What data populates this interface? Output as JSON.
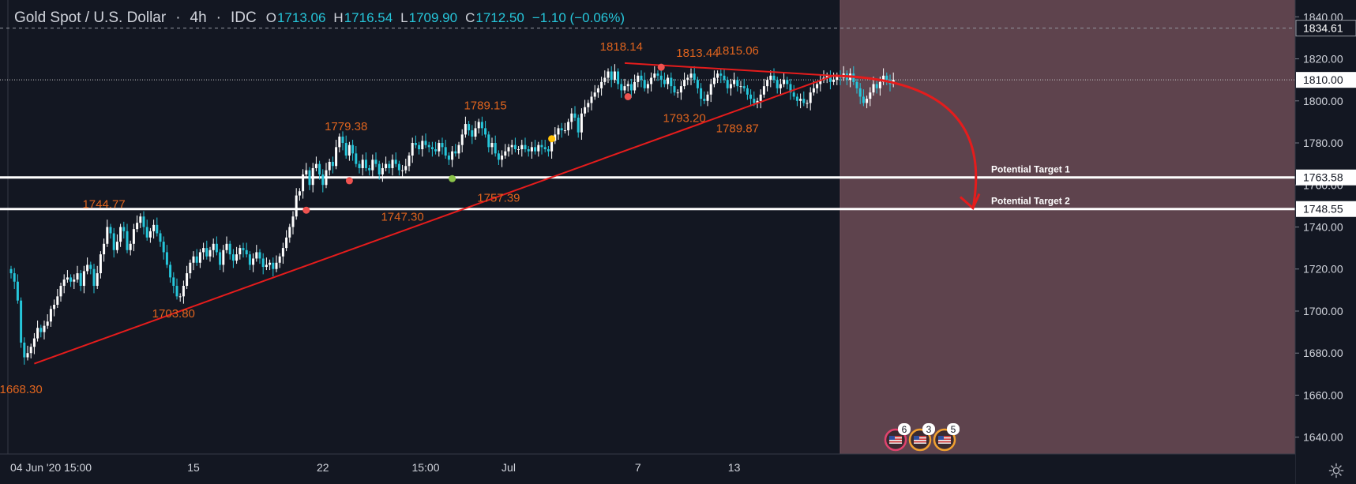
{
  "header": {
    "symbol": "Gold Spot / U.S. Dollar",
    "separator": "·",
    "interval": "4h",
    "source": "IDC",
    "open_label": "O",
    "open": "1713.06",
    "high_label": "H",
    "high": "1716.54",
    "low_label": "L",
    "low": "1709.90",
    "close_label": "C",
    "close": "1712.50",
    "change": "−1.10 (−0.06%)"
  },
  "colors": {
    "background": "#131722",
    "zone": "#5e434d",
    "trendline": "#e51c1c",
    "label": "#e0641e",
    "candle_up": "#ffffff",
    "candle_down": "#26c6da",
    "axis_text": "#d1d4dc",
    "price_box": "#ffffff"
  },
  "chart_data": {
    "type": "candlestick",
    "ylim": [
      1632,
      1848
    ],
    "yticks": [
      1640,
      1660,
      1680,
      1700,
      1720,
      1740,
      1760,
      1780,
      1800,
      1820,
      1840
    ],
    "ytick_labels": [
      "1640.00",
      "1660.00",
      "1680.00",
      "1700.00",
      "1720.00",
      "1740.00",
      "1760.00",
      "1780.00",
      "1800.00",
      "1820.00",
      "1840.00"
    ],
    "xticks": [
      {
        "label": "04 Jun '20   15:00",
        "bar": 1
      },
      {
        "label": "15",
        "bar": 55
      },
      {
        "label": "22",
        "bar": 94
      },
      {
        "label": "15:00",
        "bar": 125
      },
      {
        "label": "Jul",
        "bar": 150
      },
      {
        "label": "7",
        "bar": 189
      },
      {
        "label": "13",
        "bar": 218
      }
    ],
    "closes": [
      1718,
      1714,
      1705,
      1685,
      1678,
      1680,
      1683,
      1687,
      1692,
      1690,
      1693,
      1695,
      1701,
      1703,
      1707,
      1712,
      1715,
      1716,
      1714,
      1715,
      1718,
      1712,
      1719,
      1722,
      1720,
      1712,
      1718,
      1727,
      1732,
      1740,
      1737,
      1729,
      1733,
      1740,
      1738,
      1729,
      1732,
      1739,
      1742,
      1745,
      1740,
      1735,
      1738,
      1741,
      1737,
      1733,
      1728,
      1722,
      1716,
      1712,
      1707,
      1707,
      1712,
      1718,
      1723,
      1726,
      1723,
      1728,
      1730,
      1726,
      1729,
      1732,
      1728,
      1722,
      1729,
      1732,
      1727,
      1724,
      1727,
      1730,
      1729,
      1727,
      1722,
      1725,
      1728,
      1725,
      1721,
      1722,
      1723,
      1720,
      1723,
      1726,
      1730,
      1735,
      1740,
      1745,
      1755,
      1757,
      1765,
      1767,
      1760,
      1768,
      1770,
      1765,
      1760,
      1767,
      1771,
      1769,
      1778,
      1783,
      1780,
      1774,
      1779,
      1775,
      1770,
      1768,
      1772,
      1768,
      1767,
      1772,
      1770,
      1765,
      1768,
      1770,
      1768,
      1772,
      1770,
      1767,
      1767,
      1769,
      1774,
      1780,
      1779,
      1777,
      1781,
      1779,
      1778,
      1777,
      1776,
      1780,
      1778,
      1774,
      1772,
      1776,
      1775,
      1779,
      1784,
      1789,
      1786,
      1783,
      1787,
      1790,
      1787,
      1784,
      1778,
      1780,
      1775,
      1772,
      1774,
      1776,
      1778,
      1779,
      1777,
      1777,
      1779,
      1777,
      1776,
      1778,
      1776,
      1779,
      1778,
      1777,
      1776,
      1781,
      1784,
      1787,
      1786,
      1786,
      1790,
      1794,
      1792,
      1785,
      1794,
      1797,
      1799,
      1802,
      1804,
      1806,
      1809,
      1811,
      1814,
      1810,
      1814,
      1808,
      1805,
      1807,
      1808,
      1805,
      1809,
      1812,
      1810,
      1806,
      1808,
      1811,
      1813,
      1812,
      1810,
      1808,
      1811,
      1807,
      1804,
      1804,
      1807,
      1810,
      1811,
      1813,
      1810,
      1806,
      1801,
      1800,
      1803,
      1808,
      1811,
      1813,
      1812,
      1810,
      1806,
      1808,
      1810,
      1807,
      1807,
      1806,
      1803,
      1801,
      1799,
      1800,
      1803,
      1807,
      1810,
      1812,
      1810,
      1806,
      1808,
      1810,
      1808,
      1804,
      1802,
      1800,
      1801,
      1799,
      1799,
      1804,
      1806,
      1808,
      1810,
      1811,
      1812,
      1809,
      1810,
      1812,
      1811,
      1813,
      1810,
      1813,
      1809,
      1806,
      1802,
      1799,
      1801,
      1804,
      1808,
      1806,
      1809,
      1812,
      1810,
      1808,
      1810
    ],
    "price_labels": [
      {
        "text": "1668.30",
        "bar": 3,
        "price": 1661
      },
      {
        "text": "1703.80",
        "bar": 49,
        "price": 1697
      },
      {
        "text": "1744.77",
        "bar": 28,
        "price": 1749
      },
      {
        "text": "1747.30",
        "bar": 118,
        "price": 1743
      },
      {
        "text": "1779.38",
        "bar": 101,
        "price": 1786
      },
      {
        "text": "1757.39",
        "bar": 147,
        "price": 1752
      },
      {
        "text": "1789.15",
        "bar": 143,
        "price": 1796
      },
      {
        "text": "1818.14",
        "bar": 184,
        "price": 1824
      },
      {
        "text": "1813.44",
        "bar": 207,
        "price": 1821
      },
      {
        "text": "1815.06",
        "bar": 219,
        "price": 1822
      },
      {
        "text": "1793.20",
        "bar": 203,
        "price": 1790
      },
      {
        "text": "1789.87",
        "bar": 219,
        "price": 1785
      }
    ],
    "support_lines": [
      {
        "price": 1763.58,
        "label": "Potential Target 1",
        "box": "1763.58"
      },
      {
        "price": 1748.55,
        "label": "Potential Target 2",
        "box": "1748.55"
      }
    ],
    "dashed_lines": [
      {
        "price": 1834.61,
        "box": "1834.61"
      }
    ],
    "current_price": {
      "price": 1810.0,
      "box": "1810.00"
    },
    "trendlines": [
      {
        "from": {
          "bar": 7,
          "price": 1675
        },
        "to": {
          "bar": 248,
          "price": 1812
        }
      },
      {
        "from": {
          "bar": 185,
          "price": 1818
        },
        "to": {
          "bar": 248,
          "price": 1812
        }
      }
    ],
    "forecast_zone_start_bar": 250,
    "arrow": {
      "from": {
        "bar": 248,
        "price": 1812
      },
      "to": {
        "bar": 290,
        "price": 1749
      }
    },
    "markers": [
      {
        "bar": 89,
        "price": 1748,
        "color": "#ef5350"
      },
      {
        "bar": 102,
        "price": 1762,
        "color": "#ef5350"
      },
      {
        "bar": 133,
        "price": 1763,
        "color": "#8bc34a"
      },
      {
        "bar": 163,
        "price": 1782,
        "color": "#ffc107"
      },
      {
        "bar": 186,
        "price": 1802,
        "color": "#ef5350"
      },
      {
        "bar": 196,
        "price": 1816,
        "color": "#ef5350"
      }
    ],
    "events": [
      "6",
      "3",
      "5"
    ]
  }
}
